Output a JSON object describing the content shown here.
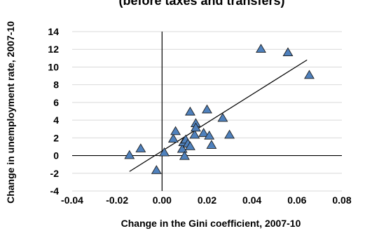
{
  "chart_data": {
    "type": "scatter",
    "title": "(before taxes and transfers)",
    "xlabel": "Change in the Gini coefficient, 2007-10",
    "ylabel": "Change in unemployment rate, 2007-10",
    "xlim": [
      -0.04,
      0.08
    ],
    "ylim": [
      -4,
      14
    ],
    "x_ticks": [
      "-0.04",
      "-0.02",
      "0.00",
      "0.02",
      "0.04",
      "0.06",
      "0.08"
    ],
    "y_ticks": [
      "-4",
      "-2",
      "0",
      "2",
      "4",
      "6",
      "8",
      "10",
      "12",
      "14"
    ],
    "x_tick_values": [
      -0.04,
      -0.02,
      0.0,
      0.02,
      0.04,
      0.06,
      0.08
    ],
    "y_tick_values": [
      -4,
      -2,
      0,
      2,
      4,
      6,
      8,
      10,
      12,
      14
    ],
    "grid": "horizontal",
    "series": [
      {
        "marker": "triangle",
        "color": "#4f81bd",
        "edge_color": "#1f1f1f",
        "points": [
          {
            "x": -0.0145,
            "y": 0.0
          },
          {
            "x": -0.0095,
            "y": 0.75
          },
          {
            "x": -0.0025,
            "y": -1.7
          },
          {
            "x": 0.001,
            "y": 0.3
          },
          {
            "x": 0.005,
            "y": 1.85
          },
          {
            "x": 0.006,
            "y": 2.7
          },
          {
            "x": 0.009,
            "y": 0.7
          },
          {
            "x": 0.0095,
            "y": 1.45
          },
          {
            "x": 0.01,
            "y": -0.1
          },
          {
            "x": 0.0105,
            "y": 1.75
          },
          {
            "x": 0.0115,
            "y": 1.3
          },
          {
            "x": 0.0125,
            "y": 1.0
          },
          {
            "x": 0.0125,
            "y": 4.9
          },
          {
            "x": 0.0145,
            "y": 2.3
          },
          {
            "x": 0.015,
            "y": 3.6
          },
          {
            "x": 0.015,
            "y": 3.1
          },
          {
            "x": 0.0185,
            "y": 2.5
          },
          {
            "x": 0.02,
            "y": 5.15
          },
          {
            "x": 0.021,
            "y": 2.2
          },
          {
            "x": 0.022,
            "y": 1.15
          },
          {
            "x": 0.027,
            "y": 4.2
          },
          {
            "x": 0.03,
            "y": 2.3
          },
          {
            "x": 0.044,
            "y": 12.0
          },
          {
            "x": 0.056,
            "y": 11.6
          },
          {
            "x": 0.0655,
            "y": 9.05
          }
        ]
      }
    ],
    "trendline": {
      "x": [
        -0.0145,
        0.0645
      ],
      "y": [
        -1.8,
        10.8
      ]
    }
  }
}
